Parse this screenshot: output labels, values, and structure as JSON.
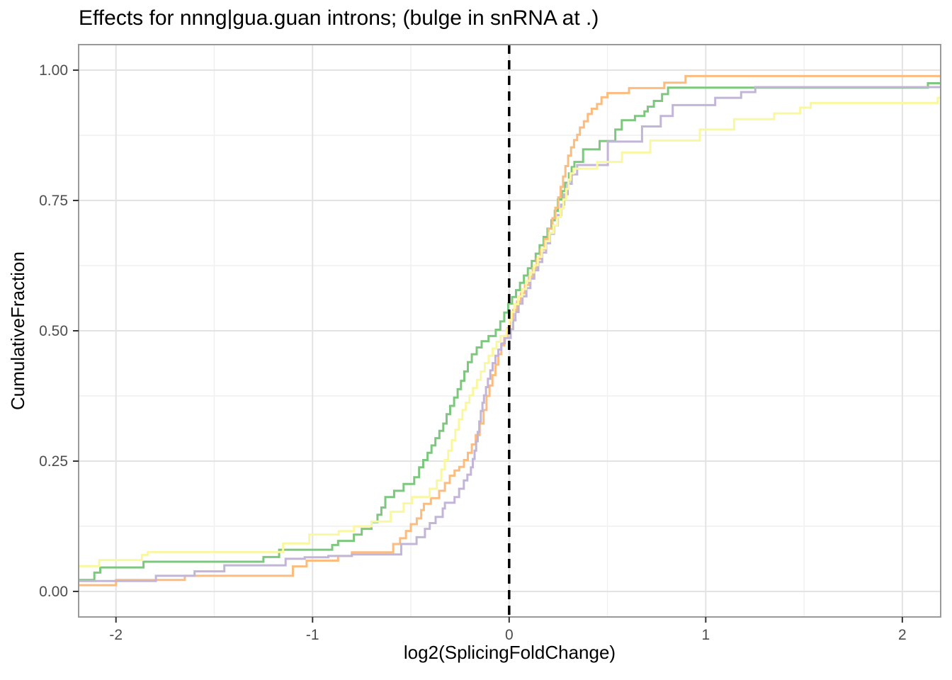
{
  "title": "Effects for nnng|gua.guan introns; (bulge in snRNA at .)",
  "colors": {
    "background": "#FFFFFF",
    "panel_border": "#999999",
    "grid_major": "#E3E3E3",
    "grid_minor": "#F1F1F1",
    "tick_mark": "#333333",
    "tick_label": "#4D4D4D",
    "title_text": "#000000",
    "vline": "#000000",
    "series_orange": "#FBBC7F",
    "series_green": "#7EC77E",
    "series_purple": "#C2B5D8",
    "series_yellow": "#FAF7A1"
  },
  "chart_data": {
    "type": "line",
    "subtype": "ecdf-step",
    "title": "Effects for nnng|gua.guan introns; (bulge in snRNA at .)",
    "xlabel": "log2(SplicingFoldChange)",
    "ylabel": "CumulativeFraction",
    "xlim": [
      -2.19,
      2.195
    ],
    "ylim": [
      -0.049,
      1.049
    ],
    "x_ticks": [
      -2,
      -1,
      0,
      1,
      2
    ],
    "x_tick_labels": [
      "-2",
      "-1",
      "0",
      "1",
      "2"
    ],
    "y_ticks": [
      0,
      0.25,
      0.5,
      0.75,
      1.0
    ],
    "y_tick_labels": [
      "0.00",
      "0.25",
      "0.50",
      "0.75",
      "1.00"
    ],
    "x_minor_ticks": [
      -1.5,
      -0.5,
      0.5,
      1.5
    ],
    "y_minor_ticks": [
      0.125,
      0.375,
      0.625,
      0.875
    ],
    "grid": true,
    "legend_position": "none",
    "vline": {
      "x": 0,
      "style": "dashed",
      "color": "#000000"
    },
    "series": [
      {
        "name": "green",
        "color": "#7EC77E",
        "start": 0.022,
        "points": [
          [
            -2.11,
            0.036
          ],
          [
            -2.08,
            0.046
          ],
          [
            -1.86,
            0.057
          ],
          [
            -1.25,
            0.066
          ],
          [
            -1.17,
            0.08
          ],
          [
            -0.9,
            0.089
          ],
          [
            -0.87,
            0.097
          ],
          [
            -0.79,
            0.109
          ],
          [
            -0.75,
            0.12
          ],
          [
            -0.7,
            0.133
          ],
          [
            -0.67,
            0.147
          ],
          [
            -0.65,
            0.161
          ],
          [
            -0.63,
            0.181
          ],
          [
            -0.585,
            0.193
          ],
          [
            -0.537,
            0.206
          ],
          [
            -0.483,
            0.219
          ],
          [
            -0.458,
            0.238
          ],
          [
            -0.437,
            0.252
          ],
          [
            -0.415,
            0.266
          ],
          [
            -0.395,
            0.28
          ],
          [
            -0.375,
            0.294
          ],
          [
            -0.355,
            0.308
          ],
          [
            -0.335,
            0.322
          ],
          [
            -0.318,
            0.34
          ],
          [
            -0.3,
            0.356
          ],
          [
            -0.28,
            0.372
          ],
          [
            -0.262,
            0.388
          ],
          [
            -0.245,
            0.404
          ],
          [
            -0.228,
            0.422
          ],
          [
            -0.21,
            0.44
          ],
          [
            -0.19,
            0.455
          ],
          [
            -0.165,
            0.468
          ],
          [
            -0.14,
            0.48
          ],
          [
            -0.105,
            0.49
          ],
          [
            -0.068,
            0.502
          ],
          [
            -0.045,
            0.518
          ],
          [
            -0.025,
            0.535
          ],
          [
            -0.005,
            0.552
          ],
          [
            0.015,
            0.565
          ],
          [
            0.035,
            0.578
          ],
          [
            0.055,
            0.592
          ],
          [
            0.075,
            0.606
          ],
          [
            0.095,
            0.62
          ],
          [
            0.115,
            0.634
          ],
          [
            0.135,
            0.648
          ],
          [
            0.155,
            0.664
          ],
          [
            0.175,
            0.68
          ],
          [
            0.195,
            0.696
          ],
          [
            0.215,
            0.712
          ],
          [
            0.232,
            0.73
          ],
          [
            0.248,
            0.752
          ],
          [
            0.268,
            0.768
          ],
          [
            0.285,
            0.784
          ],
          [
            0.304,
            0.802
          ],
          [
            0.318,
            0.814
          ],
          [
            0.332,
            0.824
          ],
          [
            0.376,
            0.848
          ],
          [
            0.46,
            0.864
          ],
          [
            0.54,
            0.886
          ],
          [
            0.573,
            0.904
          ],
          [
            0.64,
            0.912
          ],
          [
            0.688,
            0.921
          ],
          [
            0.705,
            0.93
          ],
          [
            0.736,
            0.941
          ],
          [
            0.778,
            0.954
          ],
          [
            0.808,
            0.9665
          ],
          [
            2.13,
            0.975
          ]
        ]
      },
      {
        "name": "orange",
        "color": "#FBBC7F",
        "start": 0.012,
        "points": [
          [
            -2.0,
            0.022
          ],
          [
            -1.65,
            0.03
          ],
          [
            -1.1,
            0.048
          ],
          [
            -1.03,
            0.059
          ],
          [
            -0.87,
            0.068
          ],
          [
            -0.8,
            0.075
          ],
          [
            -0.59,
            0.091
          ],
          [
            -0.555,
            0.102
          ],
          [
            -0.525,
            0.116
          ],
          [
            -0.5,
            0.129
          ],
          [
            -0.47,
            0.14
          ],
          [
            -0.447,
            0.156
          ],
          [
            -0.434,
            0.168
          ],
          [
            -0.398,
            0.179
          ],
          [
            -0.356,
            0.193
          ],
          [
            -0.327,
            0.208
          ],
          [
            -0.302,
            0.222
          ],
          [
            -0.278,
            0.232
          ],
          [
            -0.254,
            0.239
          ],
          [
            -0.23,
            0.252
          ],
          [
            -0.21,
            0.266
          ],
          [
            -0.19,
            0.282
          ],
          [
            -0.17,
            0.3
          ],
          [
            -0.15,
            0.322
          ],
          [
            -0.13,
            0.348
          ],
          [
            -0.115,
            0.375
          ],
          [
            -0.1,
            0.395
          ],
          [
            -0.085,
            0.415
          ],
          [
            -0.07,
            0.435
          ],
          [
            -0.055,
            0.455
          ],
          [
            -0.04,
            0.472
          ],
          [
            -0.025,
            0.49
          ],
          [
            -0.008,
            0.505
          ],
          [
            0.005,
            0.522
          ],
          [
            0.02,
            0.54
          ],
          [
            0.04,
            0.556
          ],
          [
            0.06,
            0.572
          ],
          [
            0.08,
            0.588
          ],
          [
            0.1,
            0.604
          ],
          [
            0.12,
            0.62
          ],
          [
            0.14,
            0.638
          ],
          [
            0.16,
            0.656
          ],
          [
            0.18,
            0.676
          ],
          [
            0.2,
            0.696
          ],
          [
            0.22,
            0.716
          ],
          [
            0.235,
            0.736
          ],
          [
            0.25,
            0.756
          ],
          [
            0.262,
            0.776
          ],
          [
            0.274,
            0.796
          ],
          [
            0.286,
            0.816
          ],
          [
            0.3,
            0.836
          ],
          [
            0.315,
            0.852
          ],
          [
            0.33,
            0.866
          ],
          [
            0.346,
            0.876
          ],
          [
            0.36,
            0.89
          ],
          [
            0.38,
            0.902
          ],
          [
            0.4,
            0.916
          ],
          [
            0.42,
            0.926
          ],
          [
            0.447,
            0.935
          ],
          [
            0.47,
            0.948
          ],
          [
            0.5,
            0.956
          ],
          [
            0.61,
            0.9655
          ],
          [
            0.789,
            0.976
          ],
          [
            0.897,
            0.9887
          ]
        ]
      },
      {
        "name": "purple",
        "color": "#C2B5D8",
        "start": 0.02,
        "points": [
          [
            -1.797,
            0.03
          ],
          [
            -1.6,
            0.0385
          ],
          [
            -1.449,
            0.05
          ],
          [
            -1.137,
            0.0625
          ],
          [
            -1.04,
            0.0655
          ],
          [
            -0.92,
            0.068
          ],
          [
            -0.8,
            0.071
          ],
          [
            -0.549,
            0.091
          ],
          [
            -0.471,
            0.104
          ],
          [
            -0.4285,
            0.12
          ],
          [
            -0.404,
            0.131
          ],
          [
            -0.374,
            0.143
          ],
          [
            -0.338,
            0.159
          ],
          [
            -0.327,
            0.17
          ],
          [
            -0.278,
            0.181
          ],
          [
            -0.2545,
            0.197
          ],
          [
            -0.2305,
            0.213
          ],
          [
            -0.2125,
            0.224
          ],
          [
            -0.1945,
            0.238
          ],
          [
            -0.185,
            0.254
          ],
          [
            -0.176,
            0.27
          ],
          [
            -0.168,
            0.288
          ],
          [
            -0.16,
            0.306
          ],
          [
            -0.152,
            0.326
          ],
          [
            -0.144,
            0.346
          ],
          [
            -0.136,
            0.362
          ],
          [
            -0.128,
            0.376
          ],
          [
            -0.118,
            0.392
          ],
          [
            -0.108,
            0.408
          ],
          [
            -0.096,
            0.424
          ],
          [
            -0.084,
            0.438
          ],
          [
            -0.07,
            0.452
          ],
          [
            -0.055,
            0.464
          ],
          [
            -0.04,
            0.476
          ],
          [
            -0.022,
            0.486
          ],
          [
            0.008,
            0.503
          ],
          [
            0.02,
            0.52
          ],
          [
            0.032,
            0.536
          ],
          [
            0.048,
            0.552
          ],
          [
            0.068,
            0.566
          ],
          [
            0.088,
            0.582
          ],
          [
            0.108,
            0.6
          ],
          [
            0.128,
            0.616
          ],
          [
            0.148,
            0.632
          ],
          [
            0.168,
            0.65
          ],
          [
            0.188,
            0.668
          ],
          [
            0.208,
            0.686
          ],
          [
            0.228,
            0.702
          ],
          [
            0.248,
            0.722
          ],
          [
            0.264,
            0.742
          ],
          [
            0.28,
            0.762
          ],
          [
            0.298,
            0.782
          ],
          [
            0.318,
            0.8
          ],
          [
            0.346,
            0.818
          ],
          [
            0.502,
            0.863
          ],
          [
            0.676,
            0.892
          ],
          [
            0.771,
            0.912
          ],
          [
            0.832,
            0.933
          ],
          [
            1.048,
            0.947
          ],
          [
            1.18,
            0.958
          ],
          [
            1.252,
            0.9675
          ]
        ]
      },
      {
        "name": "yellow",
        "color": "#FAF7A1",
        "start": 0.0485,
        "points": [
          [
            -2.085,
            0.06
          ],
          [
            -1.868,
            0.07
          ],
          [
            -1.838,
            0.0757
          ],
          [
            -1.15,
            0.092
          ],
          [
            -1.017,
            0.109
          ],
          [
            -0.867,
            0.1155
          ],
          [
            -0.789,
            0.125
          ],
          [
            -0.7,
            0.134
          ],
          [
            -0.602,
            0.153
          ],
          [
            -0.537,
            0.169
          ],
          [
            -0.494,
            0.181
          ],
          [
            -0.404,
            0.197
          ],
          [
            -0.368,
            0.213
          ],
          [
            -0.345,
            0.234
          ],
          [
            -0.328,
            0.252
          ],
          [
            -0.31,
            0.27
          ],
          [
            -0.292,
            0.29
          ],
          [
            -0.274,
            0.31
          ],
          [
            -0.256,
            0.33
          ],
          [
            -0.238,
            0.348
          ],
          [
            -0.22,
            0.362
          ],
          [
            -0.202,
            0.376
          ],
          [
            -0.184,
            0.39
          ],
          [
            -0.164,
            0.406
          ],
          [
            -0.144,
            0.422
          ],
          [
            -0.124,
            0.438
          ],
          [
            -0.104,
            0.452
          ],
          [
            -0.084,
            0.466
          ],
          [
            -0.064,
            0.479
          ],
          [
            -0.044,
            0.49
          ],
          [
            -0.014,
            0.503
          ],
          [
            0.0,
            0.52
          ],
          [
            0.012,
            0.536
          ],
          [
            0.026,
            0.551
          ],
          [
            0.046,
            0.566
          ],
          [
            0.066,
            0.58
          ],
          [
            0.086,
            0.596
          ],
          [
            0.106,
            0.612
          ],
          [
            0.126,
            0.626
          ],
          [
            0.146,
            0.642
          ],
          [
            0.166,
            0.658
          ],
          [
            0.186,
            0.672
          ],
          [
            0.206,
            0.688
          ],
          [
            0.226,
            0.702
          ],
          [
            0.246,
            0.718
          ],
          [
            0.262,
            0.734
          ],
          [
            0.276,
            0.752
          ],
          [
            0.29,
            0.772
          ],
          [
            0.302,
            0.79
          ],
          [
            0.312,
            0.802
          ],
          [
            0.328,
            0.811
          ],
          [
            0.448,
            0.824
          ],
          [
            0.574,
            0.842
          ],
          [
            0.718,
            0.865
          ],
          [
            0.97,
            0.886
          ],
          [
            1.144,
            0.906
          ],
          [
            1.348,
            0.917
          ],
          [
            1.48,
            0.928
          ],
          [
            1.534,
            0.937
          ],
          [
            2.18,
            0.947
          ]
        ]
      }
    ]
  }
}
